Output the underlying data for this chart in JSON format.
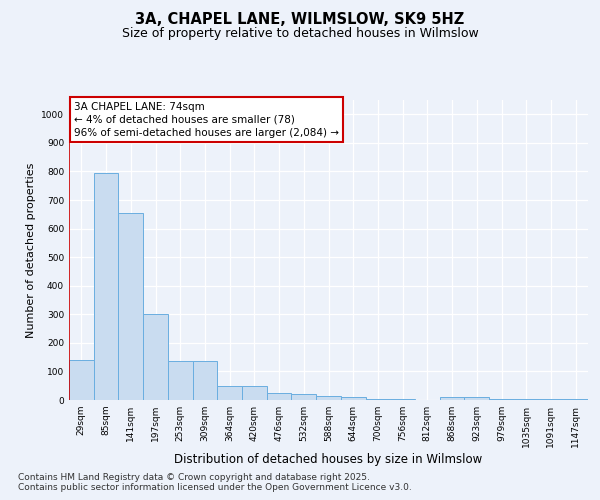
{
  "title": "3A, CHAPEL LANE, WILMSLOW, SK9 5HZ",
  "subtitle": "Size of property relative to detached houses in Wilmslow",
  "xlabel": "Distribution of detached houses by size in Wilmslow",
  "ylabel": "Number of detached properties",
  "categories": [
    "29sqm",
    "85sqm",
    "141sqm",
    "197sqm",
    "253sqm",
    "309sqm",
    "364sqm",
    "420sqm",
    "476sqm",
    "532sqm",
    "588sqm",
    "644sqm",
    "700sqm",
    "756sqm",
    "812sqm",
    "868sqm",
    "923sqm",
    "979sqm",
    "1035sqm",
    "1091sqm",
    "1147sqm"
  ],
  "values": [
    140,
    795,
    655,
    300,
    135,
    135,
    50,
    50,
    25,
    20,
    15,
    10,
    5,
    5,
    0,
    10,
    10,
    5,
    5,
    5,
    5
  ],
  "bar_color": "#c9dcf0",
  "bar_edge_color": "#6aaee0",
  "annotation_box_edgecolor": "#cc0000",
  "annotation_line1": "3A CHAPEL LANE: 74sqm",
  "annotation_line2": "← 4% of detached houses are smaller (78)",
  "annotation_line3": "96% of semi-detached houses are larger (2,084) →",
  "vline_color": "#cc0000",
  "ylim": [
    0,
    1050
  ],
  "yticks": [
    0,
    100,
    200,
    300,
    400,
    500,
    600,
    700,
    800,
    900,
    1000
  ],
  "footnote1": "Contains HM Land Registry data © Crown copyright and database right 2025.",
  "footnote2": "Contains public sector information licensed under the Open Government Licence v3.0.",
  "bg_color": "#edf2fa",
  "grid_color": "#ffffff",
  "title_fontsize": 10.5,
  "subtitle_fontsize": 9,
  "xlabel_fontsize": 8.5,
  "ylabel_fontsize": 8,
  "tick_fontsize": 6.5,
  "annot_fontsize": 7.5,
  "footnote_fontsize": 6.5
}
